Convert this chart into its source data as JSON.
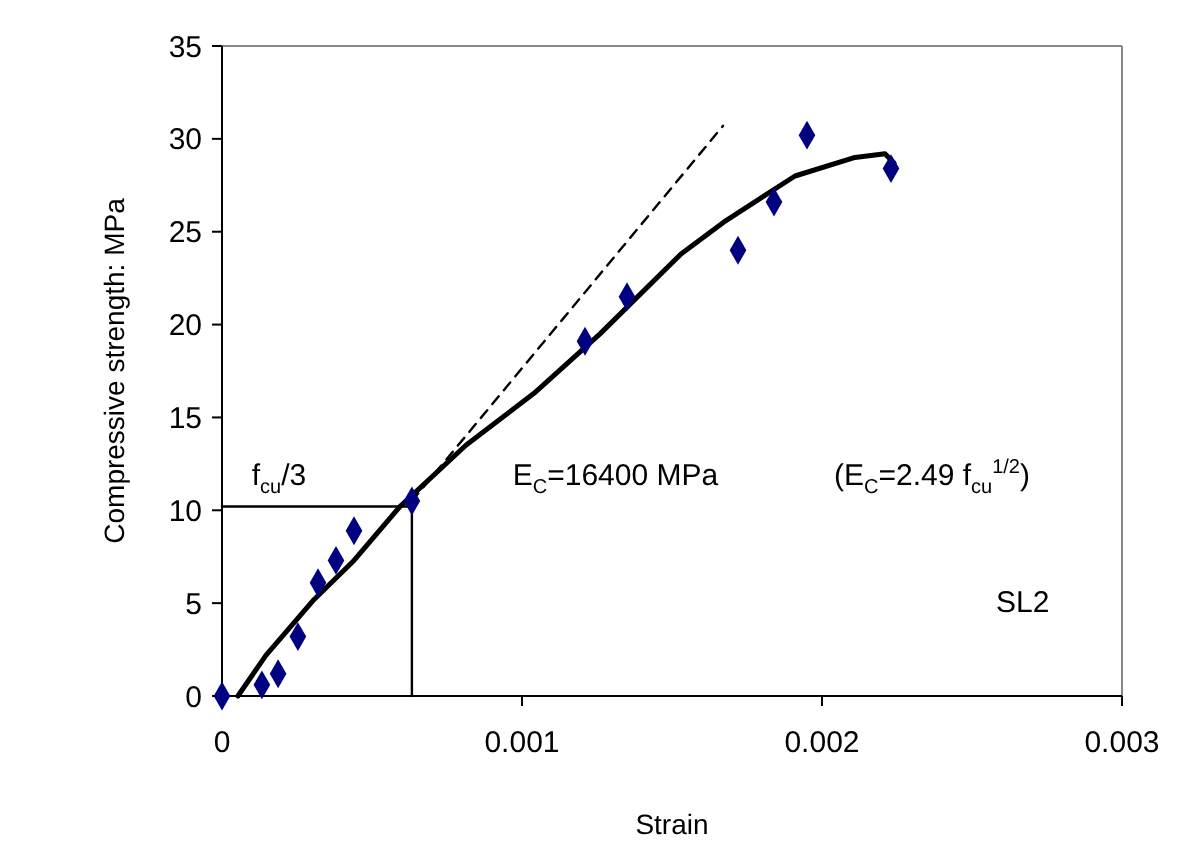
{
  "chart_data": {
    "type": "scatter",
    "xlabel": "Strain",
    "ylabel": "Compressive strength: MPa",
    "xlim": [
      0,
      0.003
    ],
    "ylim": [
      0,
      35
    ],
    "xticks": [
      0,
      0.001,
      0.002,
      0.003
    ],
    "yticks": [
      0,
      5,
      10,
      15,
      20,
      25,
      30,
      35
    ],
    "grid": false,
    "series": [
      {
        "color": "#000080",
        "marker": "diamond",
        "x": [
          0,
          0.000133,
          0.000187,
          0.000253,
          0.00032,
          0.00038,
          0.00044,
          0.000633,
          0.00121,
          0.00135,
          0.00172,
          0.00184,
          0.00195,
          0.00223
        ],
        "values": [
          0,
          0.6,
          1.2,
          3.2,
          6.1,
          7.3,
          8.9,
          10.5,
          19.1,
          21.5,
          24.0,
          26.6,
          30.2,
          28.4
        ]
      },
      {
        "type": "line",
        "color": "#000000",
        "line_style": "solid",
        "x": [
          5.3e-05,
          0.000147,
          0.000307,
          0.00044,
          0.000593,
          0.000813,
          0.00104,
          0.00126,
          0.00153,
          0.00168,
          0.00191,
          0.00211,
          0.00221,
          0.00224
        ],
        "values": [
          0,
          2.2,
          5.2,
          7.3,
          10.2,
          13.5,
          16.3,
          19.5,
          23.8,
          25.6,
          28.0,
          29.0,
          29.2,
          28.7
        ]
      },
      {
        "type": "line",
        "color": "#000000",
        "line_style": "dashed",
        "x": [
          0.000633,
          0.00167
        ],
        "values": [
          10.5,
          30.7
        ]
      },
      {
        "type": "line",
        "color": "#000000",
        "line_style": "solid",
        "x": [
          0,
          0.000633
        ],
        "values": [
          10.2,
          10.2
        ]
      },
      {
        "type": "line",
        "color": "#000000",
        "line_style": "solid",
        "x": [
          0.000633,
          0.000633
        ],
        "values": [
          10.2,
          0
        ]
      }
    ],
    "annotations": [
      "f$_{cu}$/3",
      "E$_{C}$=16400 MPa",
      "(E$_{C}$=2.49 f$_{cu}$$^{1/2}$)",
      "SL2"
    ]
  }
}
